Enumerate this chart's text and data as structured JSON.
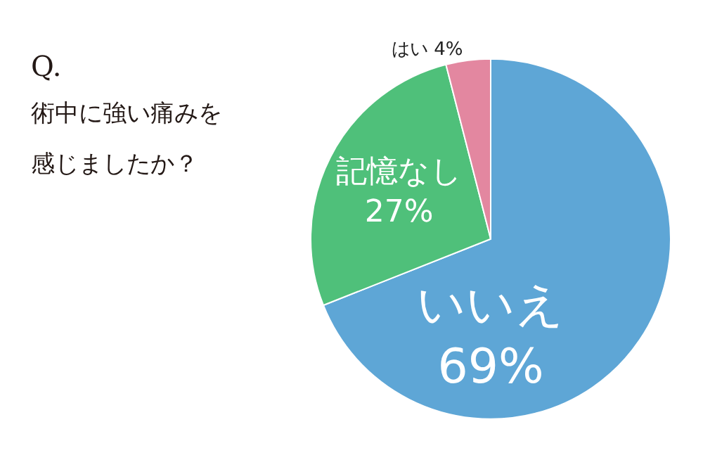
{
  "chart_data": {
    "type": "pie",
    "title": "Q.",
    "subtitle": "術中に強い痛みを感じましたか？",
    "categories": [
      "いいえ",
      "記憶なし",
      "はい"
    ],
    "values": [
      69,
      27,
      4
    ],
    "value_labels": [
      "69%",
      "27%",
      "4%"
    ],
    "colors": [
      "#5ea6d6",
      "#4fc07a",
      "#e387a0"
    ],
    "legend": false
  }
}
